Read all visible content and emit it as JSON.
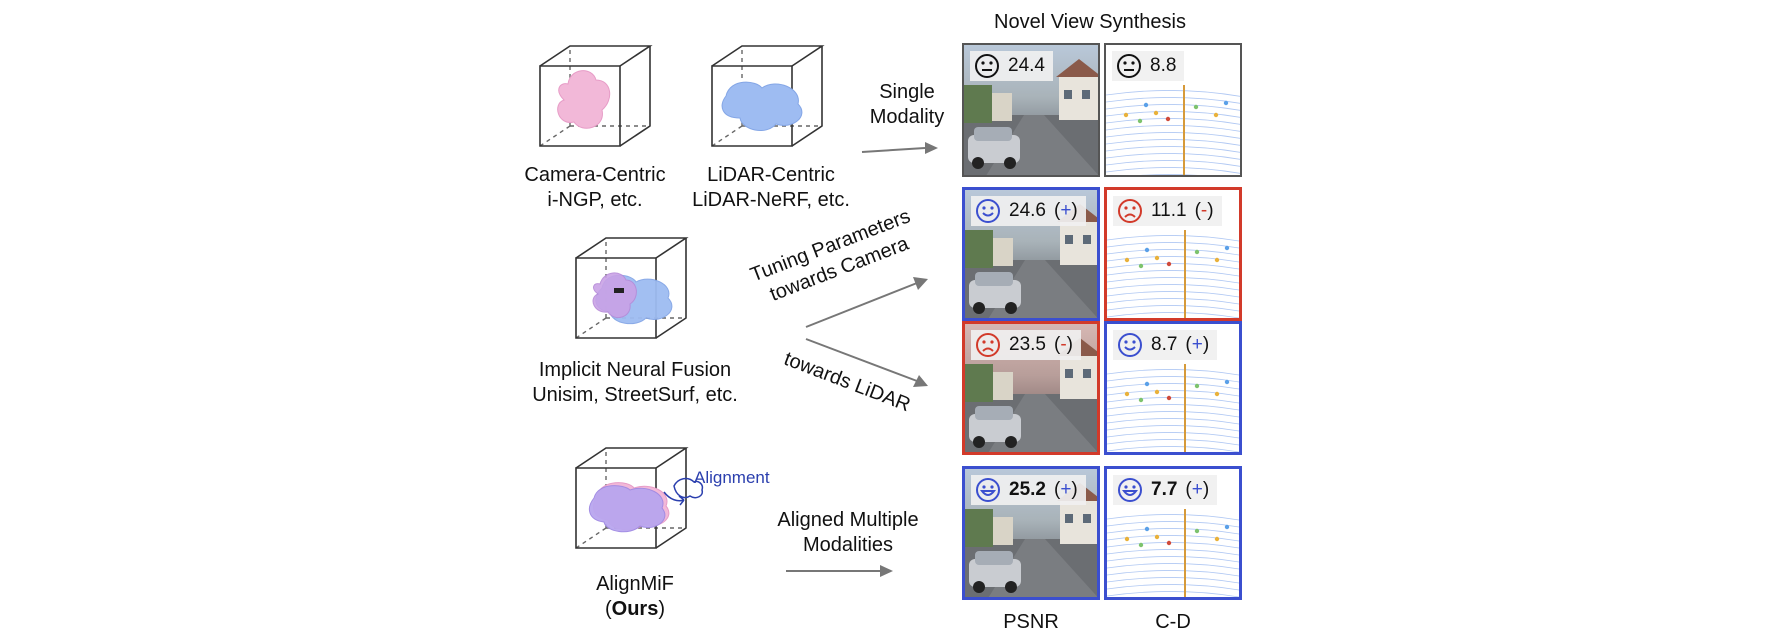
{
  "header": {
    "title": "Novel View Synthesis"
  },
  "methods": {
    "camera": {
      "line1": "Camera-Centric",
      "line2": "i-NGP, etc."
    },
    "lidar": {
      "line1": "LiDAR-Centric",
      "line2": "LiDAR-NeRF, etc."
    },
    "implicit": {
      "line1": "Implicit Neural Fusion",
      "line2": "Unisim, StreetSurf, etc."
    },
    "ours": {
      "line1": "AlignMiF",
      "line2_open": "(",
      "line2_bold": "Ours",
      "line2_close": ")",
      "alignment_label": "Alignment"
    }
  },
  "arrows": {
    "single": {
      "line1": "Single",
      "line2": "Modality"
    },
    "tuning_camera": {
      "line1": "Tuning Parameters",
      "line2": "towards Camera"
    },
    "towards_lidar": {
      "line1": "towards LiDAR"
    },
    "aligned": {
      "line1": "Aligned Multiple",
      "line2": "Modalities"
    }
  },
  "results": [
    {
      "psnr": "24.4",
      "psnr_sign": "",
      "psnr_face": "neutral",
      "cd": "8.8",
      "cd_sign": "",
      "cd_face": "neutral"
    },
    {
      "psnr": "24.6",
      "psnr_sign": "+",
      "psnr_face": "happy",
      "cd": "11.1",
      "cd_sign": "-",
      "cd_face": "sad"
    },
    {
      "psnr": "23.5",
      "psnr_sign": "-",
      "psnr_face": "sad",
      "cd": "8.7",
      "cd_sign": "+",
      "cd_face": "happy"
    },
    {
      "psnr": "25.2",
      "psnr_sign": "+",
      "psnr_face": "grin",
      "cd": "7.7",
      "cd_sign": "+",
      "cd_face": "grin"
    }
  ],
  "columns": {
    "psnr": "PSNR",
    "cd": "C-D"
  },
  "colors": {
    "positive": "#3b4fcf",
    "negative": "#d23a2a",
    "neutral": "#555555",
    "camera_blob": "#f2b8d8",
    "lidar_blob": "#9ebcf2",
    "fused_blob": "#b9a6ef"
  }
}
